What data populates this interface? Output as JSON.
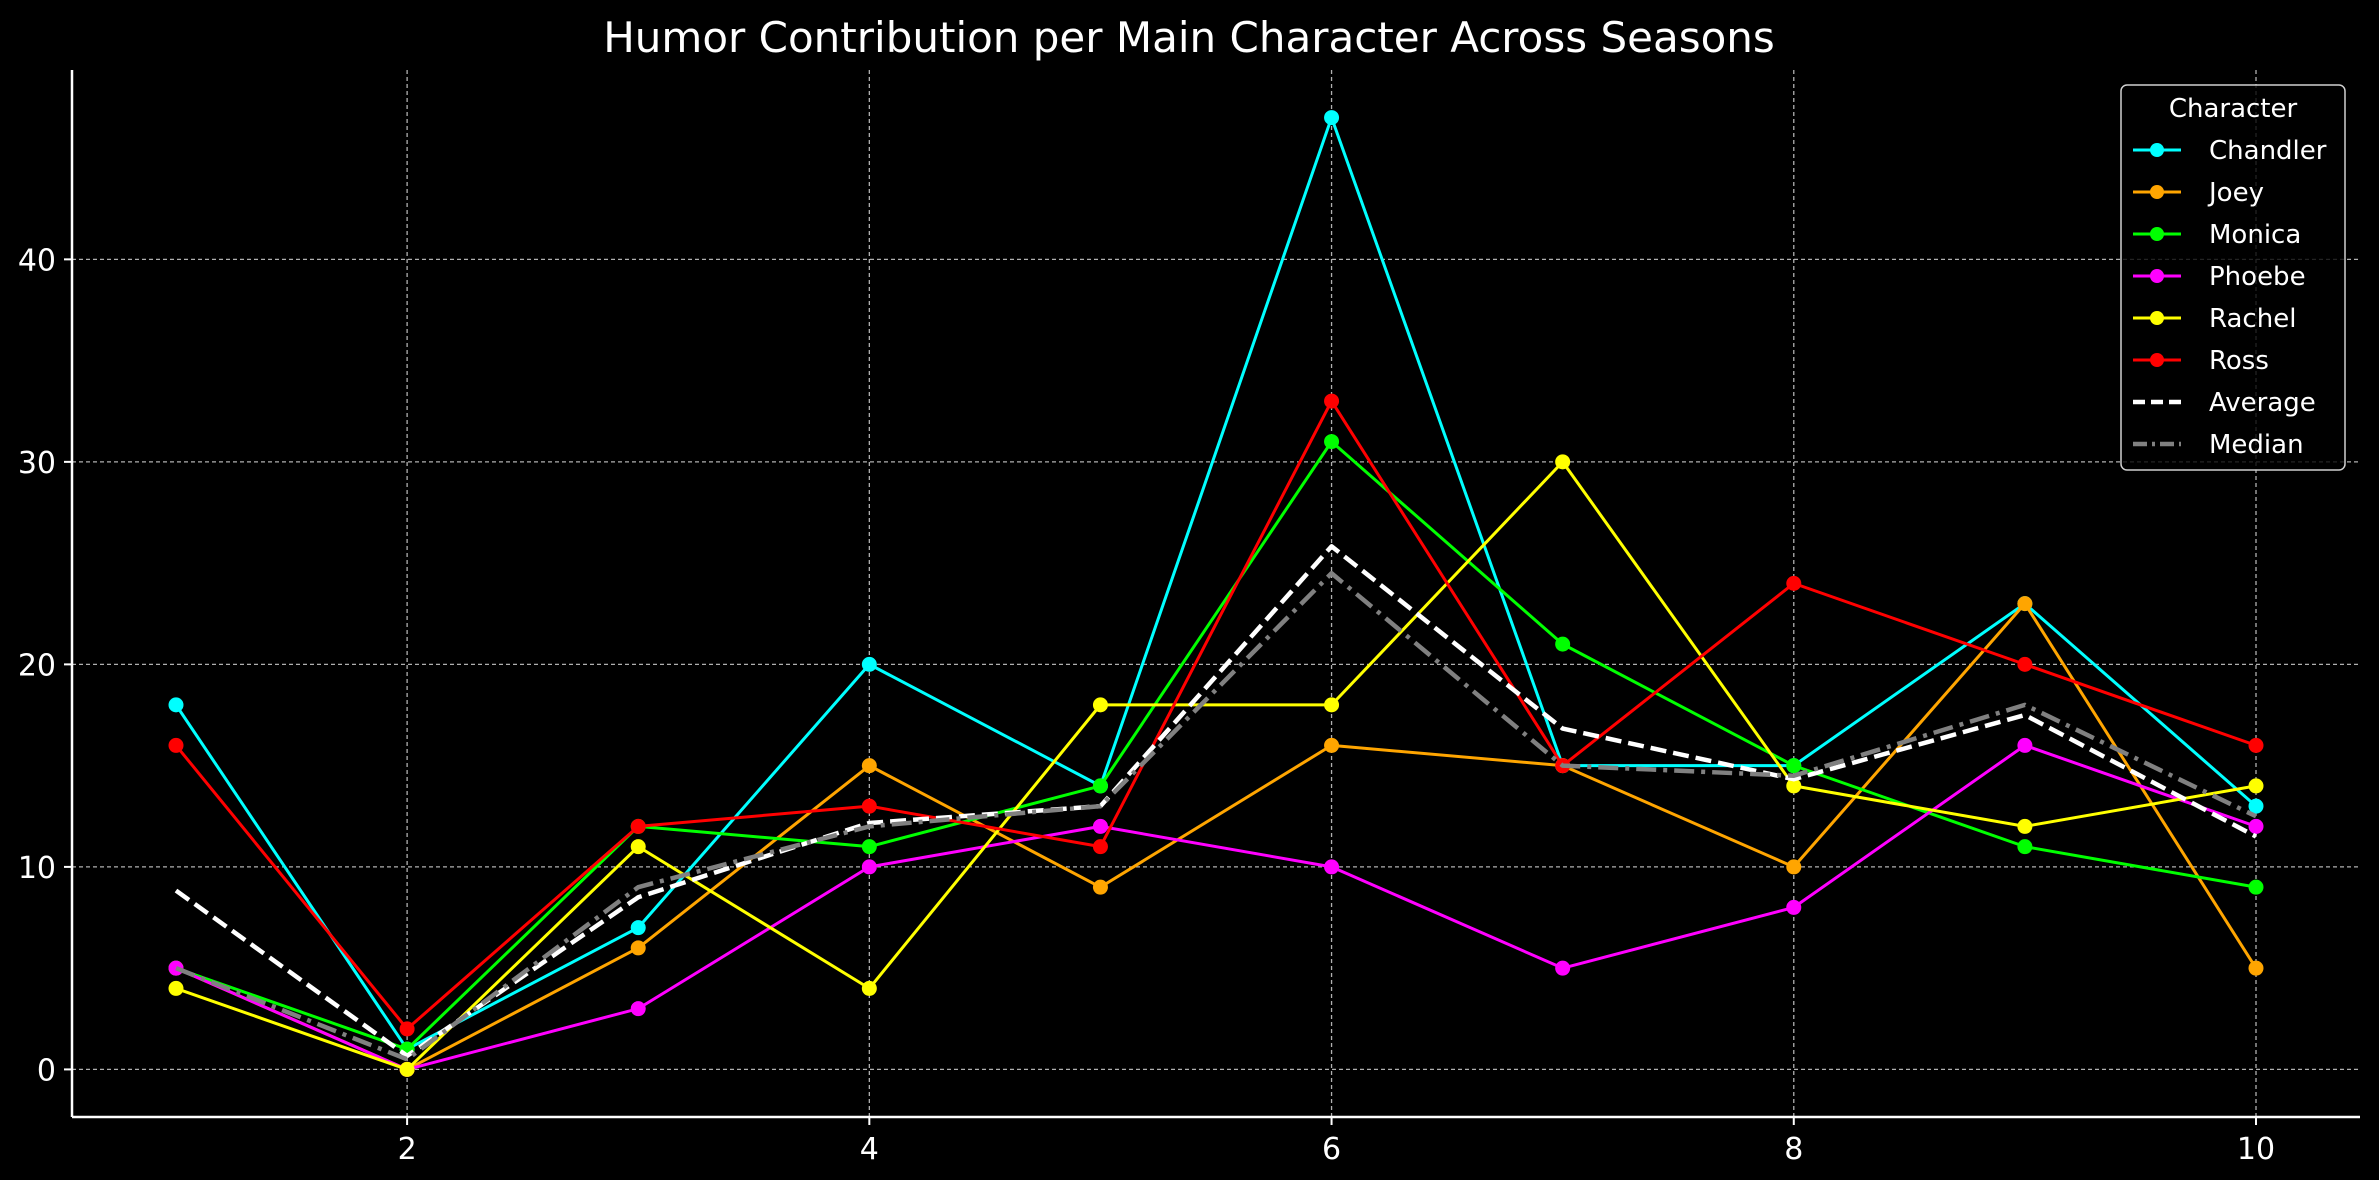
{
  "chart_data": {
    "type": "line",
    "title": "Humor Contribution per Main Character Across Seasons",
    "xlabel": "",
    "ylabel": "",
    "x": [
      1,
      2,
      3,
      4,
      5,
      6,
      7,
      8,
      9,
      10
    ],
    "xlim": [
      0.55,
      10.45
    ],
    "ylim": [
      -2.35,
      49.35
    ],
    "xticks": [
      2,
      4,
      6,
      8,
      10
    ],
    "yticks": [
      0,
      10,
      20,
      30,
      40
    ],
    "grid": true,
    "legend_title": "Character",
    "legend_position": "top-right",
    "series": [
      {
        "name": "Chandler",
        "color": "#00ffff",
        "style": "solid",
        "marker": true,
        "values": [
          18,
          1,
          7,
          20,
          14,
          47,
          15,
          15,
          23,
          13
        ]
      },
      {
        "name": "Joey",
        "color": "#ffa500",
        "style": "solid",
        "marker": true,
        "values": [
          5,
          0,
          6,
          15,
          9,
          16,
          15,
          10,
          23,
          5
        ]
      },
      {
        "name": "Monica",
        "color": "#00ff00",
        "style": "solid",
        "marker": true,
        "values": [
          5,
          1,
          12,
          11,
          14,
          31,
          21,
          15,
          11,
          9
        ]
      },
      {
        "name": "Phoebe",
        "color": "#ff00ff",
        "style": "solid",
        "marker": true,
        "values": [
          5,
          0,
          3,
          10,
          12,
          10,
          5,
          8,
          16,
          12
        ]
      },
      {
        "name": "Rachel",
        "color": "#ffff00",
        "style": "solid",
        "marker": true,
        "values": [
          4,
          0,
          11,
          4,
          18,
          18,
          30,
          14,
          12,
          14
        ]
      },
      {
        "name": "Ross",
        "color": "#ff0000",
        "style": "solid",
        "marker": true,
        "values": [
          16,
          2,
          12,
          13,
          11,
          33,
          15,
          24,
          20,
          16
        ]
      },
      {
        "name": "Average",
        "color": "#ffffff",
        "style": "dashed",
        "marker": false,
        "values": [
          8.83,
          0.67,
          8.5,
          12.17,
          13.0,
          25.83,
          16.83,
          14.33,
          17.5,
          11.5
        ]
      },
      {
        "name": "Median",
        "color": "#808080",
        "style": "dashdot",
        "marker": false,
        "values": [
          5.0,
          0.5,
          9.0,
          12.0,
          13.0,
          24.5,
          15.0,
          14.5,
          18.0,
          12.5
        ]
      }
    ]
  }
}
